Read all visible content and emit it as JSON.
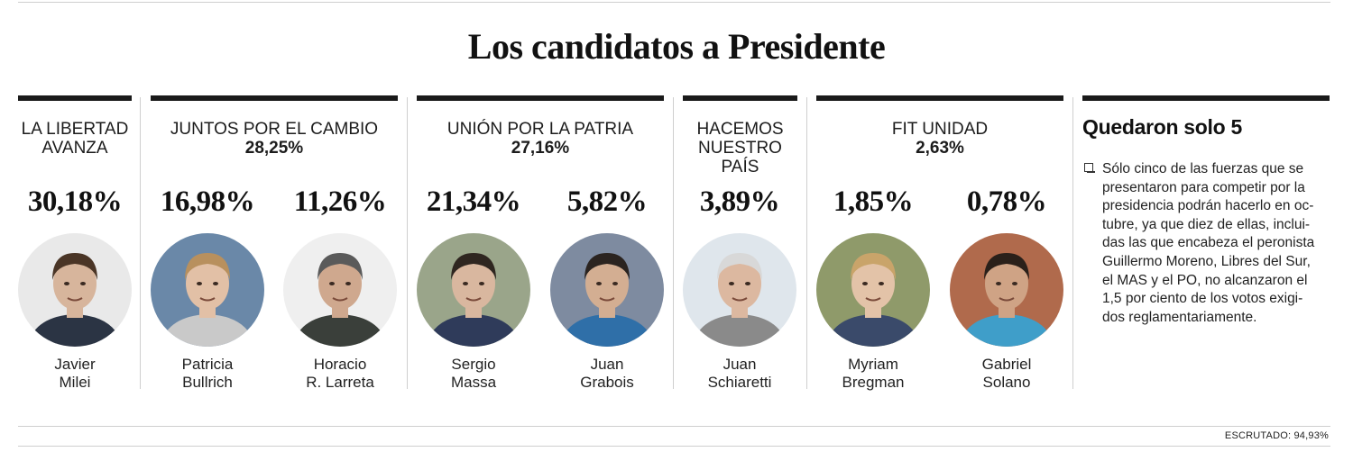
{
  "title": "Los candidatos a Presidente",
  "parties": [
    {
      "name": "LA LIBERTAD AVANZA",
      "total": ""
    },
    {
      "name": "JUNTOS POR EL CAMBIO",
      "total": "28,25%"
    },
    {
      "name": "UNIÓN POR LA PATRIA",
      "total": "27,16%"
    },
    {
      "name": "HACEMOS NUESTRO PAÍS",
      "total": ""
    },
    {
      "name": "FIT UNIDAD",
      "total": "2,63%"
    }
  ],
  "candidates": [
    {
      "result": "30,18%",
      "first": "Javier",
      "last": "Milei",
      "bg": "#e9e9e9",
      "skin": "#d7b59c",
      "hair": "#4a3526",
      "shirt": "#2b3444"
    },
    {
      "result": "16,98%",
      "first": "Patricia",
      "last": "Bullrich",
      "bg": "#6a88a8",
      "skin": "#e2c0a6",
      "hair": "#b8905e",
      "shirt": "#c9c9c9"
    },
    {
      "result": "11,26%",
      "first": "Horacio",
      "last": "R. Larreta",
      "bg": "#efefef",
      "skin": "#cfa88e",
      "hair": "#5a5a5a",
      "shirt": "#3a3f3a"
    },
    {
      "result": "21,34%",
      "first": "Sergio",
      "last": "Massa",
      "bg": "#9aa58a",
      "skin": "#d9b79f",
      "hair": "#2f2620",
      "shirt": "#2f3b5a"
    },
    {
      "result": "5,82%",
      "first": "Juan",
      "last": "Grabois",
      "bg": "#7e8ba0",
      "skin": "#d3ae92",
      "hair": "#2b2420",
      "shirt": "#2f6fa8"
    },
    {
      "result": "3,89%",
      "first": "Juan",
      "last": "Schiaretti",
      "bg": "#dfe6ec",
      "skin": "#dcb8a0",
      "hair": "#d8d8d8",
      "shirt": "#8a8a8a"
    },
    {
      "result": "1,85%",
      "first": "Myriam",
      "last": "Bregman",
      "bg": "#8f9a6a",
      "skin": "#e3c3a8",
      "hair": "#c9a46a",
      "shirt": "#3a4a6a"
    },
    {
      "result": "0,78%",
      "first": "Gabriel",
      "last": "Solano",
      "bg": "#b06a4c",
      "skin": "#cfa385",
      "hair": "#2a201a",
      "shirt": "#3f9ec9"
    }
  ],
  "sidebar": {
    "title": "Quedaron solo 5",
    "lines": [
      "Sólo cinco de las fuerzas que se",
      "presentaron para competir por la",
      "presidencia podrán hacerlo en oc-",
      "tubre, ya que diez de ellas, inclui-",
      "das las que encabeza el peronista",
      "Guillermo Moreno, Libres del Sur,",
      "el MAS y el PO, no alcanzaron el",
      "1,5 por ciento de los votos exigi-",
      "dos reglamentariamente."
    ]
  },
  "footer": "ESCRUTADO:  94,93%"
}
